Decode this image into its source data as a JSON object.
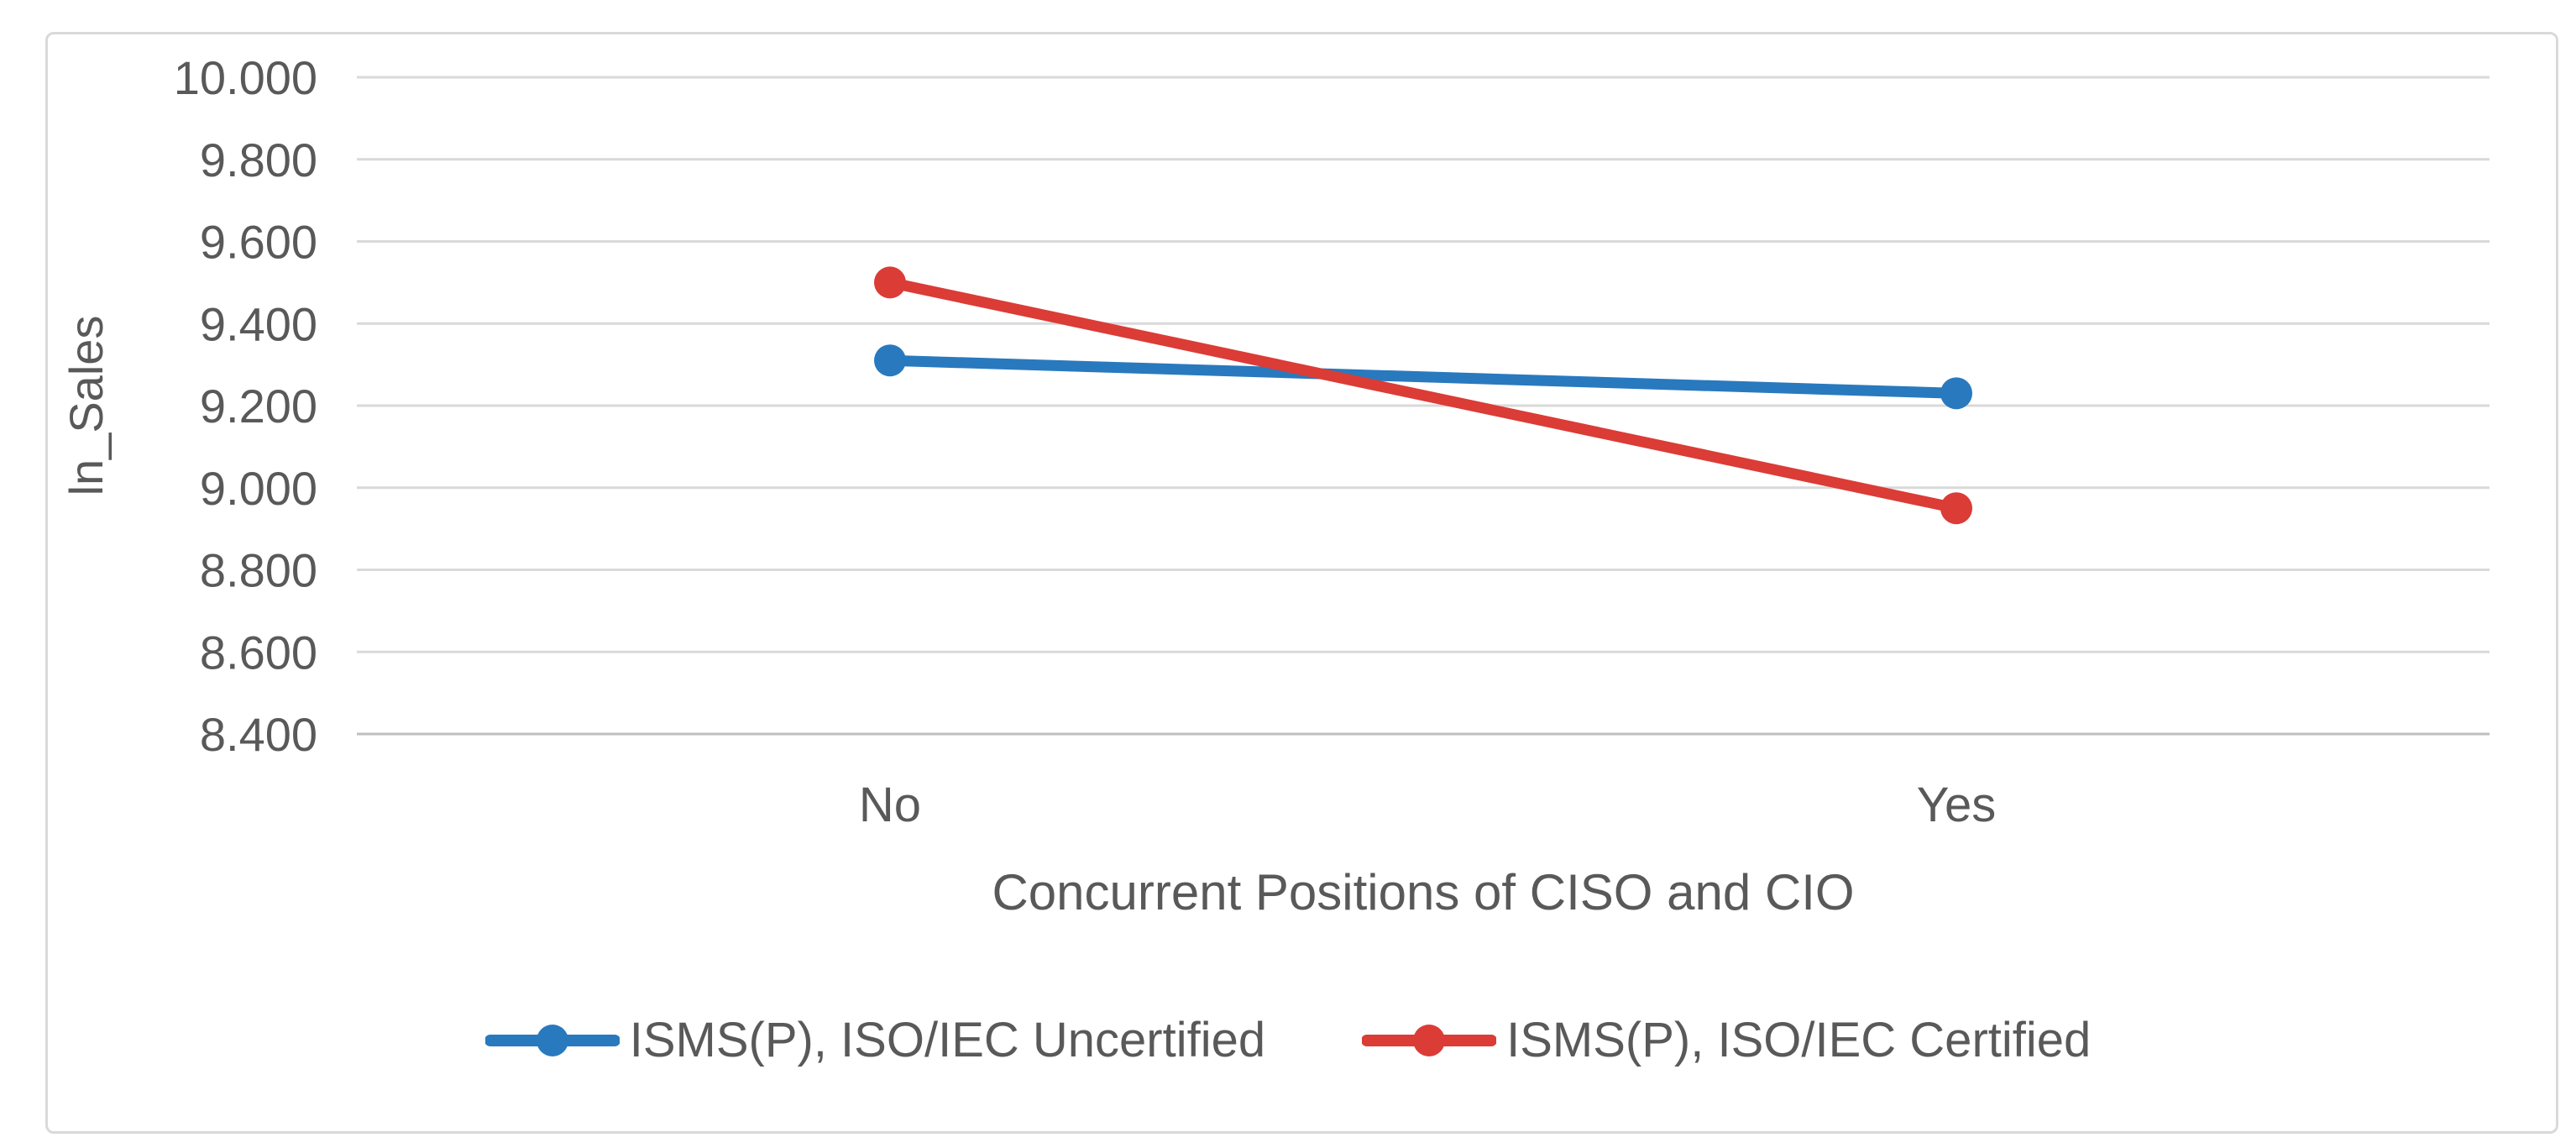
{
  "figure": {
    "background_color": "#FFFFFF",
    "border_color": "#D9D9D9"
  },
  "chart_data": {
    "type": "line",
    "categories": [
      "No",
      "Yes"
    ],
    "series": [
      {
        "name": "ISMS(P), ISO/IEC Uncertified",
        "values": [
          9.31,
          9.23
        ],
        "color": "#2979BE"
      },
      {
        "name": "ISMS(P), ISO/IEC Certified",
        "values": [
          9.5,
          8.95
        ],
        "color": "#DB3C36"
      }
    ],
    "title": "",
    "xlabel": "Concurrent Positions of CISO and CIO",
    "ylabel": "ln_Sales",
    "ylim": [
      8.4,
      10.0
    ],
    "ytick_step": 0.2,
    "ytick_labels": [
      "8.400",
      "8.600",
      "8.800",
      "9.000",
      "9.200",
      "9.400",
      "9.600",
      "9.800",
      "10.000"
    ],
    "grid": true,
    "gridline_color": "#D9D9D9",
    "axis_line_color": "#BFBFBF",
    "text_color": "#595959",
    "legend_position": "bottom"
  }
}
